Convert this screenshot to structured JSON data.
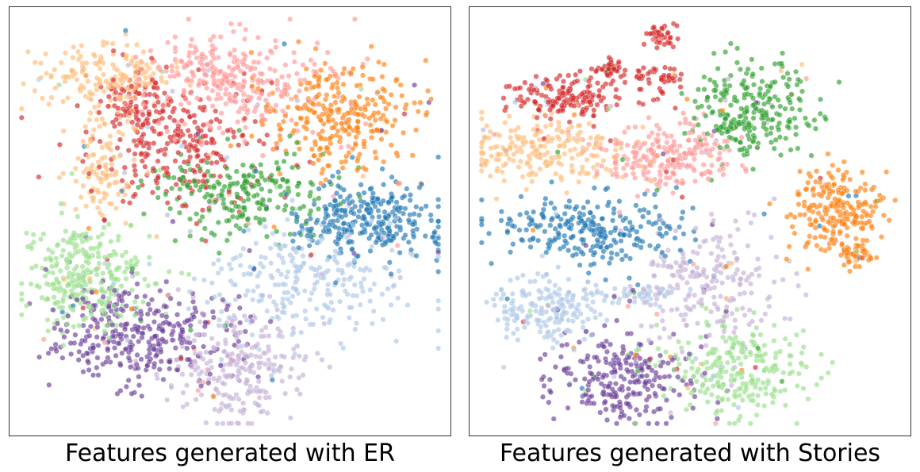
{
  "palette": {
    "blue": "#1f77b4",
    "light_blue": "#aec7e8",
    "orange": "#ff7f0e",
    "light_orange": "#ffbb78",
    "green": "#2ca02c",
    "light_green": "#98df8a",
    "red": "#d62728",
    "pink": "#ff9896",
    "purple": "#6a3d9a",
    "light_purple": "#c5b0d5"
  },
  "chart_data": [
    {
      "type": "scatter",
      "title": "Features generated with ER",
      "xlabel": "",
      "ylabel": "",
      "axes_visible": false,
      "grid": false,
      "legend": "none",
      "xlim": [
        0,
        100
      ],
      "ylim": [
        0,
        100
      ],
      "clusters": [
        {
          "color": "light_orange",
          "center": [
            20,
            85
          ],
          "spread": [
            8,
            4
          ],
          "count": 170
        },
        {
          "color": "light_orange",
          "center": [
            20,
            63
          ],
          "spread": [
            4,
            6
          ],
          "count": 110
        },
        {
          "color": "pink",
          "center": [
            50,
            84
          ],
          "spread": [
            11,
            6
          ],
          "count": 320
        },
        {
          "color": "orange",
          "center": [
            76,
            75
          ],
          "spread": [
            9,
            7
          ],
          "count": 290
        },
        {
          "color": "red",
          "center": [
            38,
            68
          ],
          "spread": [
            11,
            8
          ],
          "count": 260
        },
        {
          "color": "red",
          "center": [
            28,
            80
          ],
          "spread": [
            4,
            5
          ],
          "count": 70
        },
        {
          "color": "green",
          "center": [
            53,
            57
          ],
          "spread": [
            11,
            5
          ],
          "count": 230
        },
        {
          "color": "blue",
          "center": [
            83,
            50
          ],
          "spread": [
            9,
            5
          ],
          "count": 300
        },
        {
          "color": "light_blue",
          "center": [
            67,
            35
          ],
          "spread": [
            13,
            7
          ],
          "count": 260
        },
        {
          "color": "light_green",
          "center": [
            16,
            37
          ],
          "spread": [
            7,
            6
          ],
          "count": 310
        },
        {
          "color": "purple",
          "center": [
            29,
            23
          ],
          "spread": [
            11,
            6
          ],
          "count": 330
        },
        {
          "color": "light_purple",
          "center": [
            52,
            15
          ],
          "spread": [
            8,
            7
          ],
          "count": 260
        }
      ]
    },
    {
      "type": "scatter",
      "title": "Features generated with Stories",
      "xlabel": "",
      "ylabel": "",
      "axes_visible": false,
      "grid": false,
      "legend": "none",
      "xlim": [
        0,
        100
      ],
      "ylim": [
        0,
        100
      ],
      "clusters": [
        {
          "color": "red",
          "center": [
            43,
            95
          ],
          "spread": [
            1.5,
            1.2
          ],
          "count": 40
        },
        {
          "color": "red",
          "center": [
            31,
            87
          ],
          "spread": [
            2,
            1.2
          ],
          "count": 40
        },
        {
          "color": "red",
          "center": [
            42,
            85
          ],
          "spread": [
            2.5,
            1.5
          ],
          "count": 45
        },
        {
          "color": "red",
          "center": [
            22,
            80
          ],
          "spread": [
            8,
            2.5
          ],
          "count": 170
        },
        {
          "color": "light_orange",
          "center": [
            17,
            67
          ],
          "spread": [
            10,
            4
          ],
          "count": 220
        },
        {
          "color": "pink",
          "center": [
            45,
            66
          ],
          "spread": [
            8,
            4
          ],
          "count": 240
        },
        {
          "color": "green",
          "center": [
            64,
            77
          ],
          "spread": [
            7,
            6
          ],
          "count": 260
        },
        {
          "color": "orange",
          "center": [
            85,
            53
          ],
          "spread": [
            6,
            5
          ],
          "count": 210
        },
        {
          "color": "orange",
          "center": [
            89,
            42
          ],
          "spread": [
            2.5,
            2
          ],
          "count": 50
        },
        {
          "color": "blue",
          "center": [
            26,
            48
          ],
          "spread": [
            11,
            4
          ],
          "count": 260
        },
        {
          "color": "light_blue",
          "center": [
            17,
            29
          ],
          "spread": [
            7,
            4
          ],
          "count": 190
        },
        {
          "color": "light_blue",
          "center": [
            38,
            32
          ],
          "spread": [
            6,
            1.5
          ],
          "count": 50
        },
        {
          "color": "light_purple",
          "center": [
            54,
            35
          ],
          "spread": [
            9,
            7
          ],
          "count": 230
        },
        {
          "color": "purple",
          "center": [
            34,
            12
          ],
          "spread": [
            8,
            5
          ],
          "count": 250
        },
        {
          "color": "light_green",
          "center": [
            61,
            14
          ],
          "spread": [
            9,
            6
          ],
          "count": 260
        }
      ]
    }
  ]
}
